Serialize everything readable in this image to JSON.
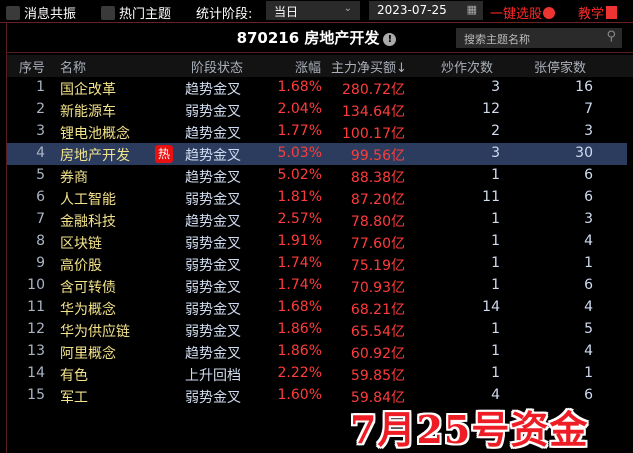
{
  "toolbar": {
    "resonance_label": "消息共振",
    "hot_topics_label": "热门主题",
    "period_label": "统计阶段:",
    "period_value": "当日",
    "date_value": "2023-07-25",
    "one_click_label": "一键选股",
    "tutorial_label": "教学"
  },
  "header": {
    "title": "870216 房地产开发",
    "search_placeholder": "搜索主题名称"
  },
  "columns": [
    "序号",
    "名称",
    "阶段状态",
    "涨幅",
    "主力净买额↓",
    "炒作次数",
    "张停家数"
  ],
  "rows": [
    {
      "no": "1",
      "name": "国企改革",
      "state": "趋势金叉",
      "pct": "1.68%",
      "amount": "280.72亿",
      "count": "3",
      "limit": "16"
    },
    {
      "no": "2",
      "name": "新能源车",
      "state": "弱势金叉",
      "pct": "2.04%",
      "amount": "134.64亿",
      "count": "12",
      "limit": "7"
    },
    {
      "no": "3",
      "name": "锂电池概念",
      "state": "趋势金叉",
      "pct": "1.77%",
      "amount": "100.17亿",
      "count": "2",
      "limit": "3"
    },
    {
      "no": "4",
      "name": "房地产开发",
      "state": "趋势金叉",
      "pct": "5.03%",
      "amount": "99.56亿",
      "count": "3",
      "limit": "30",
      "hot": "热",
      "selected": true
    },
    {
      "no": "5",
      "name": "券商",
      "state": "趋势金叉",
      "pct": "5.02%",
      "amount": "88.38亿",
      "count": "1",
      "limit": "6"
    },
    {
      "no": "6",
      "name": "人工智能",
      "state": "弱势金叉",
      "pct": "1.81%",
      "amount": "87.20亿",
      "count": "11",
      "limit": "6"
    },
    {
      "no": "7",
      "name": "金融科技",
      "state": "趋势金叉",
      "pct": "2.57%",
      "amount": "78.80亿",
      "count": "1",
      "limit": "3"
    },
    {
      "no": "8",
      "name": "区块链",
      "state": "弱势金叉",
      "pct": "1.91%",
      "amount": "77.60亿",
      "count": "1",
      "limit": "4"
    },
    {
      "no": "9",
      "name": "高价股",
      "state": "弱势金叉",
      "pct": "1.74%",
      "amount": "75.19亿",
      "count": "1",
      "limit": "1"
    },
    {
      "no": "10",
      "name": "含可转债",
      "state": "弱势金叉",
      "pct": "1.74%",
      "amount": "70.93亿",
      "count": "1",
      "limit": "6"
    },
    {
      "no": "11",
      "name": "华为概念",
      "state": "弱势金叉",
      "pct": "1.68%",
      "amount": "68.21亿",
      "count": "14",
      "limit": "4"
    },
    {
      "no": "12",
      "name": "华为供应链",
      "state": "弱势金叉",
      "pct": "1.86%",
      "amount": "65.54亿",
      "count": "1",
      "limit": "5"
    },
    {
      "no": "13",
      "name": "阿里概念",
      "state": "趋势金叉",
      "pct": "1.86%",
      "amount": "60.92亿",
      "count": "1",
      "limit": "4"
    },
    {
      "no": "14",
      "name": "有色",
      "state": "上升回档",
      "pct": "2.22%",
      "amount": "59.85亿",
      "count": "1",
      "limit": "1"
    },
    {
      "no": "15",
      "name": "军工",
      "state": "弱势金叉",
      "pct": "1.60%",
      "amount": "59.84亿",
      "count": "4",
      "limit": "6"
    }
  ],
  "watermark": "7月25号资金",
  "colors": {
    "up": "#ff3c3c",
    "selected_row": "#2b3c5e",
    "name": "#f2e28a"
  }
}
